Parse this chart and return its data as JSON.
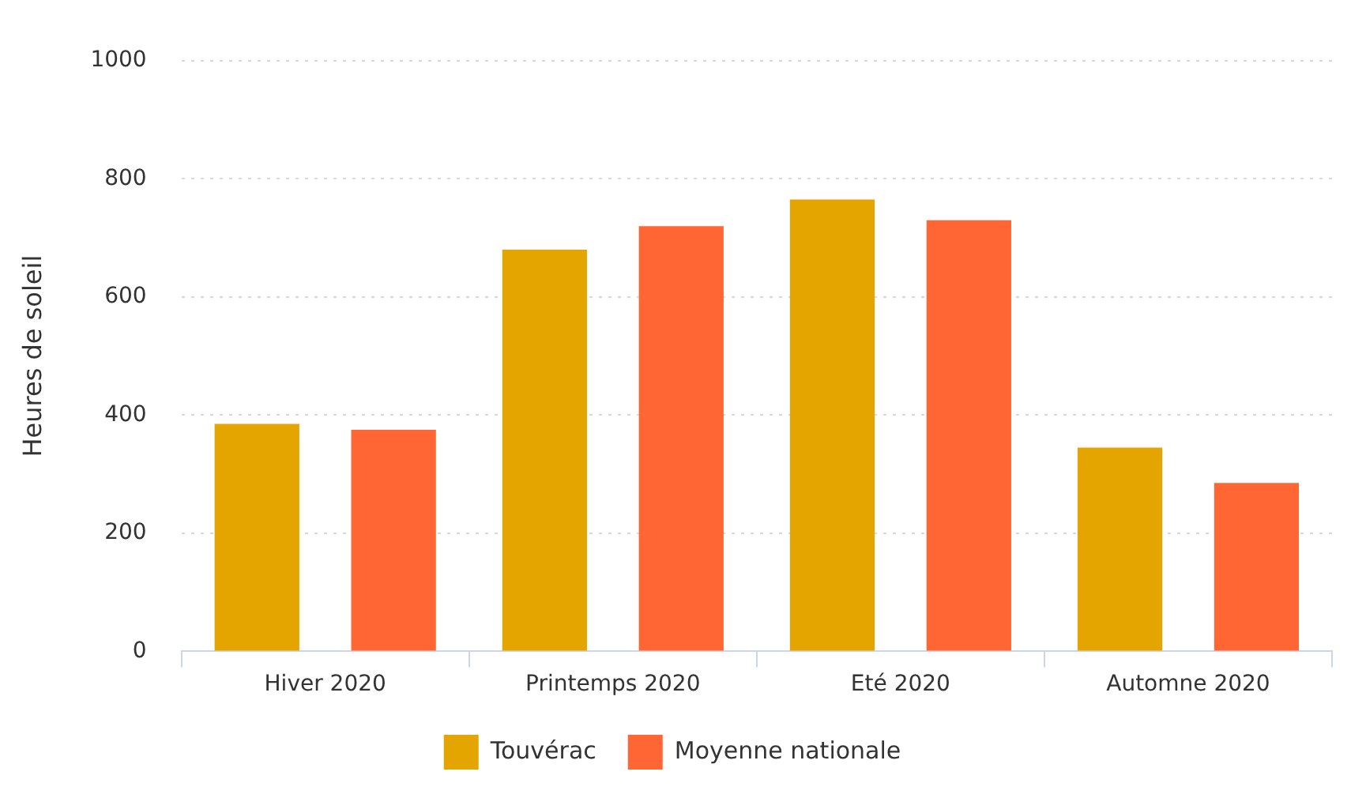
{
  "chart_data": {
    "type": "bar",
    "ylabel": "Heures de soleil",
    "categories": [
      "Hiver 2020",
      "Printemps 2020",
      "Eté 2020",
      "Automne 2020"
    ],
    "series": [
      {
        "name": "Touvérac",
        "color": "#e5a500",
        "values": [
          385,
          680,
          765,
          345
        ]
      },
      {
        "name": "Moyenne nationale",
        "color": "#ff6633",
        "values": [
          375,
          720,
          730,
          285
        ]
      }
    ],
    "ylim": [
      0,
      1000
    ],
    "yticks": [
      0,
      200,
      400,
      600,
      800,
      1000
    ],
    "grid": "y",
    "legend": "bottom"
  }
}
